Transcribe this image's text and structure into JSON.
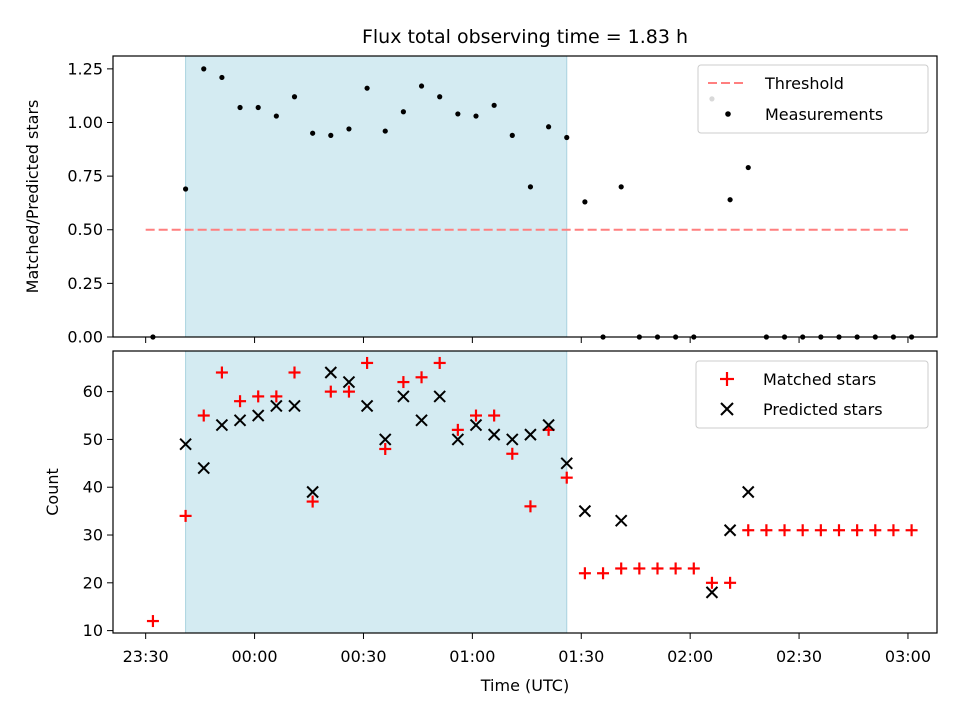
{
  "chart_data": [
    {
      "type": "scatter",
      "title": "Flux total observing time = 1.83 h",
      "ylabel": "Matched/Predicted stars",
      "xlabel": "",
      "ylim": [
        0,
        1.31
      ],
      "yticks": [
        "0.00",
        "0.25",
        "0.50",
        "0.75",
        "1.00",
        "1.25"
      ],
      "ytick_values": [
        0,
        0.25,
        0.5,
        0.75,
        1.0,
        1.25
      ],
      "shaded_interval": [
        "23:41",
        "01:26"
      ],
      "shade_color": "#d4ebf2",
      "legend_position": "top-right",
      "threshold": {
        "name": "Threshold",
        "y": 0.5,
        "x_start": "23:30",
        "x_end": "03:00",
        "color": "#ff7f7f",
        "style": "dashed"
      },
      "series": [
        {
          "name": "Measurements",
          "marker": "dot",
          "color": "#000000",
          "x": [
            "23:32",
            "23:41",
            "23:46",
            "23:51",
            "23:56",
            "00:01",
            "00:06",
            "00:11",
            "00:16",
            "00:21",
            "00:26",
            "00:31",
            "00:36",
            "00:41",
            "00:46",
            "00:51",
            "00:56",
            "01:01",
            "01:06",
            "01:11",
            "01:16",
            "01:21",
            "01:26",
            "01:31",
            "01:36",
            "01:41",
            "01:46",
            "01:51",
            "01:56",
            "02:01",
            "02:06",
            "02:11",
            "02:16",
            "02:21",
            "02:26",
            "02:31",
            "02:36",
            "02:41",
            "02:46",
            "02:51",
            "02:56",
            "03:01"
          ],
          "y": [
            0.0,
            0.69,
            1.25,
            1.21,
            1.07,
            1.07,
            1.03,
            1.12,
            0.95,
            0.94,
            0.97,
            1.16,
            0.96,
            1.05,
            1.17,
            1.12,
            1.04,
            1.03,
            1.08,
            0.94,
            0.7,
            0.98,
            0.93,
            0.63,
            0.0,
            0.7,
            0.0,
            0.0,
            0.0,
            0.0,
            1.11,
            0.64,
            0.79,
            0.0,
            0.0,
            0.0,
            0.0,
            0.0,
            0.0,
            0.0,
            0.0,
            0.0
          ]
        }
      ]
    },
    {
      "type": "scatter",
      "title": "",
      "xlabel": "Time (UTC)",
      "ylabel": "Count",
      "ylim": [
        9.5,
        68.5
      ],
      "yticks": [
        "10",
        "20",
        "30",
        "40",
        "50",
        "60"
      ],
      "ytick_values": [
        10,
        20,
        30,
        40,
        50,
        60
      ],
      "xticks": [
        "23:30",
        "00:00",
        "00:30",
        "01:00",
        "01:30",
        "02:00",
        "02:30",
        "03:00"
      ],
      "xlim": [
        "23:21",
        "03:08"
      ],
      "shaded_interval": [
        "23:41",
        "01:26"
      ],
      "shade_color": "#d4ebf2",
      "legend_position": "top-right",
      "series": [
        {
          "name": "Matched stars",
          "marker": "plus",
          "color": "#ff0000",
          "x": [
            "23:32",
            "23:41",
            "23:46",
            "23:51",
            "23:56",
            "00:01",
            "00:06",
            "00:11",
            "00:16",
            "00:21",
            "00:26",
            "00:31",
            "00:36",
            "00:41",
            "00:46",
            "00:51",
            "00:56",
            "01:01",
            "01:06",
            "01:11",
            "01:16",
            "01:21",
            "01:26",
            "01:31",
            "01:36",
            "01:41",
            "01:46",
            "01:51",
            "01:56",
            "02:01",
            "02:06",
            "02:11",
            "02:16",
            "02:21",
            "02:26",
            "02:31",
            "02:36",
            "02:41",
            "02:46",
            "02:51",
            "02:56",
            "03:01"
          ],
          "y": [
            12,
            34,
            55,
            64,
            58,
            59,
            59,
            64,
            37,
            60,
            60,
            66,
            48,
            62,
            63,
            66,
            52,
            55,
            55,
            47,
            36,
            52,
            42,
            22,
            22,
            23,
            23,
            23,
            23,
            23,
            20,
            20,
            31,
            31,
            31,
            31,
            31,
            31,
            31,
            31,
            31,
            31
          ]
        },
        {
          "name": "Predicted stars",
          "marker": "x",
          "color": "#000000",
          "x": [
            "23:41",
            "23:46",
            "23:51",
            "23:56",
            "00:01",
            "00:06",
            "00:11",
            "00:16",
            "00:21",
            "00:26",
            "00:31",
            "00:36",
            "00:41",
            "00:46",
            "00:51",
            "00:56",
            "01:01",
            "01:06",
            "01:11",
            "01:16",
            "01:21",
            "01:26",
            "01:31",
            "01:41",
            "02:06",
            "02:11",
            "02:16"
          ],
          "y": [
            49,
            44,
            53,
            54,
            55,
            57,
            57,
            39,
            64,
            62,
            57,
            50,
            59,
            54,
            59,
            50,
            53,
            51,
            50,
            51,
            53,
            45,
            35,
            33,
            18,
            31,
            39
          ]
        }
      ]
    }
  ]
}
